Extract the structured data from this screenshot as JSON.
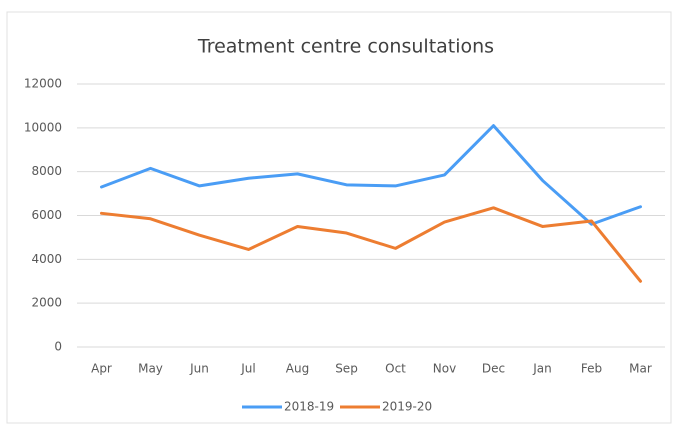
{
  "chart_data": {
    "type": "line",
    "title": "Treatment centre consultations",
    "categories": [
      "Apr",
      "May",
      "Jun",
      "Jul",
      "Aug",
      "Sep",
      "Oct",
      "Nov",
      "Dec",
      "Jan",
      "Feb",
      "Mar"
    ],
    "series": [
      {
        "name": "2018-19",
        "color": "#4a9df5",
        "values": [
          7300,
          8150,
          7350,
          7700,
          7900,
          7400,
          7350,
          7850,
          10100,
          7600,
          5600,
          6400
        ]
      },
      {
        "name": "2019-20",
        "color": "#ed7d31",
        "values": [
          6100,
          5850,
          5100,
          4450,
          5500,
          5200,
          4500,
          5700,
          6350,
          5500,
          5750,
          3000
        ]
      }
    ],
    "ylim": [
      0,
      12000
    ],
    "yticks": [
      0,
      2000,
      4000,
      6000,
      8000,
      10000,
      12000
    ],
    "grid": true,
    "legend": "bottom"
  }
}
